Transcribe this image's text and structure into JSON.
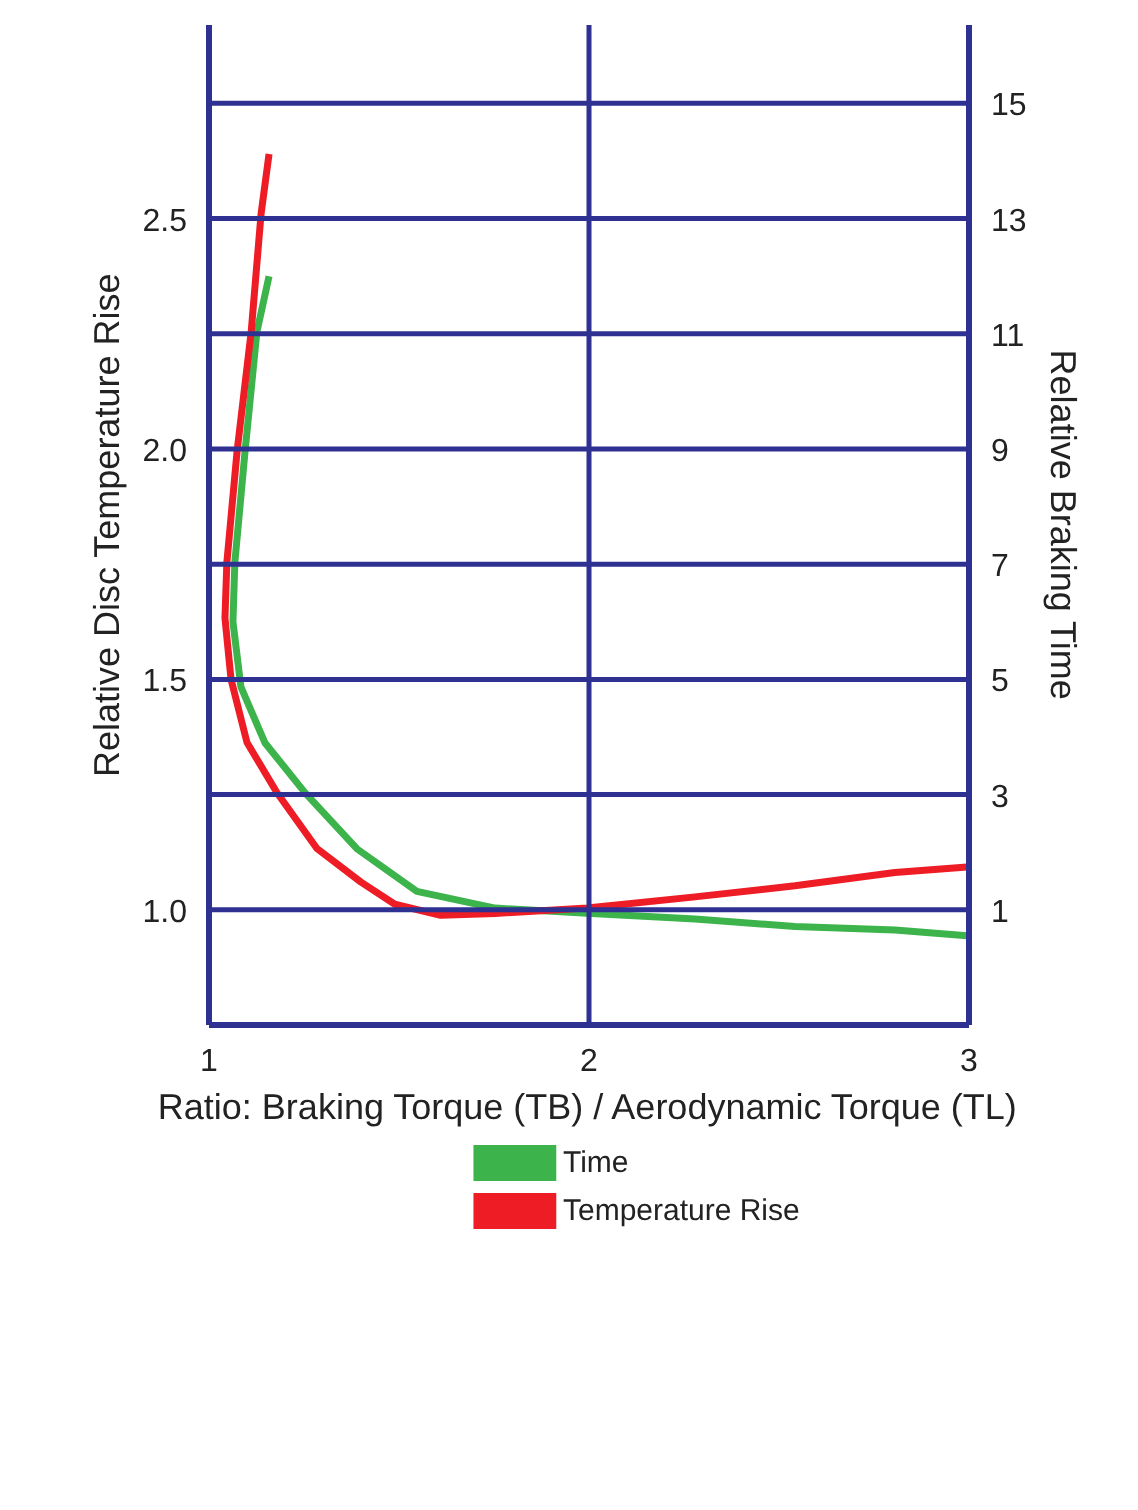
{
  "chart_data": {
    "type": "line",
    "xlabel": "Ratio: Braking Torque (TB) / Aerodynamic Torque (TL)",
    "ylabel": "Relative Disc Temperature Rise",
    "y2label": "Relative Braking Time",
    "xlim": [
      1,
      3
    ],
    "xticks": [
      1,
      2,
      3
    ],
    "ylim": [
      0.75,
      2.92
    ],
    "yticks": [
      {
        "value": 1,
        "label": "1.0"
      },
      1.5,
      {
        "value": 2,
        "label": "2.0"
      },
      2.5
    ],
    "y2lim": [
      -1,
      16.36
    ],
    "y2ticks": [
      1,
      3,
      5,
      7,
      9,
      11,
      13,
      15
    ],
    "grid": true,
    "legend": "bottom",
    "line_style": "solid",
    "marker": "none",
    "series": [
      {
        "name": "Time",
        "color": "#3cb44b",
        "axis": "y2",
        "x": [
          1.158,
          1.126,
          1.095,
          1.068,
          1.063,
          1.084,
          1.147,
          1.253,
          1.389,
          1.547,
          1.753,
          1.995,
          2.279,
          2.542,
          2.805,
          2.995
        ],
        "values": [
          12.0,
          11.03,
          8.97,
          7.03,
          6.0,
          4.87,
          3.9,
          3.03,
          2.06,
          1.32,
          1.03,
          0.94,
          0.84,
          0.71,
          0.65,
          0.55
        ]
      },
      {
        "name": "Temperature Rise",
        "color": "#ee1c25",
        "x": [
          1.158,
          1.137,
          1.111,
          1.074,
          1.047,
          1.042,
          1.058,
          1.1,
          1.179,
          1.284,
          1.4,
          1.489,
          1.61,
          1.753,
          1.995,
          2.279,
          2.542,
          2.805,
          2.995
        ],
        "values": [
          2.64,
          2.51,
          2.254,
          1.996,
          1.754,
          1.633,
          1.5,
          1.363,
          1.254,
          1.133,
          1.06,
          1.012,
          0.988,
          0.992,
          1.004,
          1.028,
          1.052,
          1.081,
          1.093
        ]
      }
    ]
  }
}
